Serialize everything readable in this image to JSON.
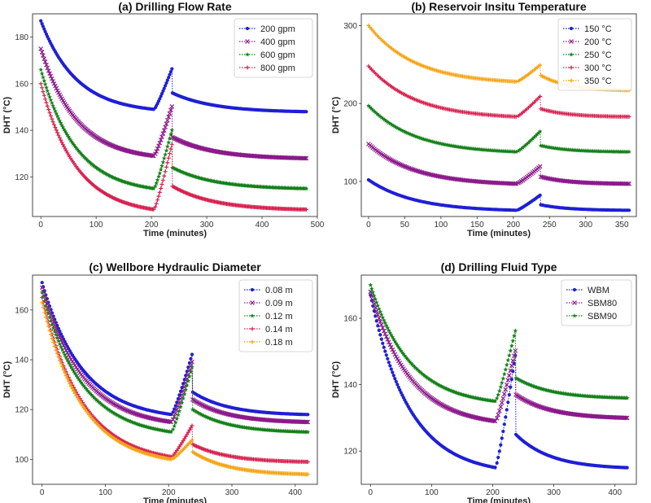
{
  "chart_data": [
    {
      "type": "line",
      "title": "(a) Drilling Flow Rate",
      "xlabel": "Time (minutes)",
      "ylabel": "DHT (°C)",
      "xlim": [
        -15,
        500
      ],
      "ylim": [
        103,
        190
      ],
      "xticks": [
        0,
        100,
        200,
        300,
        400,
        500
      ],
      "yticks": [
        120,
        140,
        160,
        180
      ],
      "legend_position": "top-right",
      "breaks": [
        205,
        238,
        480
      ],
      "series": [
        {
          "name": "200 gpm",
          "color": "#1f1fd6",
          "marker": "dot",
          "start": 187,
          "heat_end": 149,
          "peak": 167,
          "resume": 156,
          "final": 148
        },
        {
          "name": "400 gpm",
          "color": "#8b1a8b",
          "marker": "x",
          "start": 175,
          "heat_end": 129,
          "peak": 151,
          "resume": 137,
          "final": 128
        },
        {
          "name": "600 gpm",
          "color": "#15801a",
          "marker": "star",
          "start": 166,
          "heat_end": 115,
          "peak": 141,
          "resume": 124,
          "final": 115
        },
        {
          "name": "800 gpm",
          "color": "#d6204e",
          "marker": "plus",
          "start": 160,
          "heat_end": 106,
          "peak": 135,
          "resume": 116,
          "final": 106
        }
      ]
    },
    {
      "type": "line",
      "title": "(b) Reservoir Insitu Temperature",
      "xlabel": "Time (minutes)",
      "ylabel": "DHT (°C)",
      "xlim": [
        -10,
        370
      ],
      "ylim": [
        55,
        315
      ],
      "xticks": [
        0,
        50,
        100,
        150,
        200,
        250,
        300,
        350
      ],
      "yticks": [
        100,
        200,
        300
      ],
      "legend_position": "top-right",
      "breaks": [
        205,
        238,
        360
      ],
      "series": [
        {
          "name": "150 °C",
          "color": "#1f1fd6",
          "marker": "dot",
          "start": 102,
          "heat_end": 63,
          "peak": 83,
          "resume": 70,
          "final": 63
        },
        {
          "name": "200 °C",
          "color": "#8b1a8b",
          "marker": "x",
          "start": 148,
          "heat_end": 97,
          "peak": 120,
          "resume": 106,
          "final": 97
        },
        {
          "name": "250 °C",
          "color": "#15801a",
          "marker": "star",
          "start": 197,
          "heat_end": 138,
          "peak": 165,
          "resume": 146,
          "final": 138
        },
        {
          "name": "300 °C",
          "color": "#d6204e",
          "marker": "plus",
          "start": 248,
          "heat_end": 183,
          "peak": 210,
          "resume": 193,
          "final": 183
        },
        {
          "name": "350 °C",
          "color": "#f5a312",
          "marker": "plus",
          "start": 300,
          "heat_end": 228,
          "peak": 250,
          "resume": 236,
          "final": 217
        }
      ]
    },
    {
      "type": "line",
      "title": "(c) Wellbore Hydraulic Diameter",
      "xlabel": "Time (minutes)",
      "ylabel": "DHT (°C)",
      "xlim": [
        -15,
        435
      ],
      "ylim": [
        90,
        174
      ],
      "xticks": [
        0,
        100,
        200,
        300,
        400
      ],
      "yticks": [
        100,
        120,
        140,
        160
      ],
      "legend_position": "top-right",
      "breaks": [
        205,
        238,
        420
      ],
      "series": [
        {
          "name": "0.08 m",
          "color": "#1f1fd6",
          "marker": "dot",
          "start": 171,
          "heat_end": 118,
          "peak": 143,
          "resume": 127,
          "final": 118
        },
        {
          "name": "0.09 m",
          "color": "#8b1a8b",
          "marker": "x",
          "start": 169,
          "heat_end": 115,
          "peak": 140,
          "resume": 124,
          "final": 115
        },
        {
          "name": "0.12 m",
          "color": "#15801a",
          "marker": "star",
          "start": 167,
          "heat_end": 111,
          "peak": 138,
          "resume": 120,
          "final": 111
        },
        {
          "name": "0.14 m",
          "color": "#d6204e",
          "marker": "plus",
          "start": 165,
          "heat_end": 101,
          "peak": 114,
          "resume": 106,
          "final": 99
        },
        {
          "name": "0.18 m",
          "color": "#f5a312",
          "marker": "plus",
          "start": 163,
          "heat_end": 100,
          "peak": 108,
          "resume": 103,
          "final": 94
        }
      ]
    },
    {
      "type": "line",
      "title": "(d) Drilling Fluid Type",
      "xlabel": "Time (minutes)",
      "ylabel": "DHT (°C)",
      "xlim": [
        -15,
        435
      ],
      "ylim": [
        110,
        173
      ],
      "xticks": [
        0,
        100,
        200,
        300,
        400
      ],
      "yticks": [
        120,
        140,
        160
      ],
      "legend_position": "top-right",
      "breaks": [
        205,
        238,
        420
      ],
      "series": [
        {
          "name": "WBM",
          "color": "#1f1fd6",
          "marker": "dot",
          "start": 167,
          "heat_end": 115,
          "peak": 150,
          "resume": 125,
          "final": 115
        },
        {
          "name": "SBM80",
          "color": "#8b1a8b",
          "marker": "x",
          "start": 168,
          "heat_end": 129,
          "peak": 151,
          "resume": 137,
          "final": 130
        },
        {
          "name": "SBM90",
          "color": "#15801a",
          "marker": "star",
          "start": 170,
          "heat_end": 135,
          "peak": 157,
          "resume": 142,
          "final": 136
        }
      ]
    }
  ]
}
